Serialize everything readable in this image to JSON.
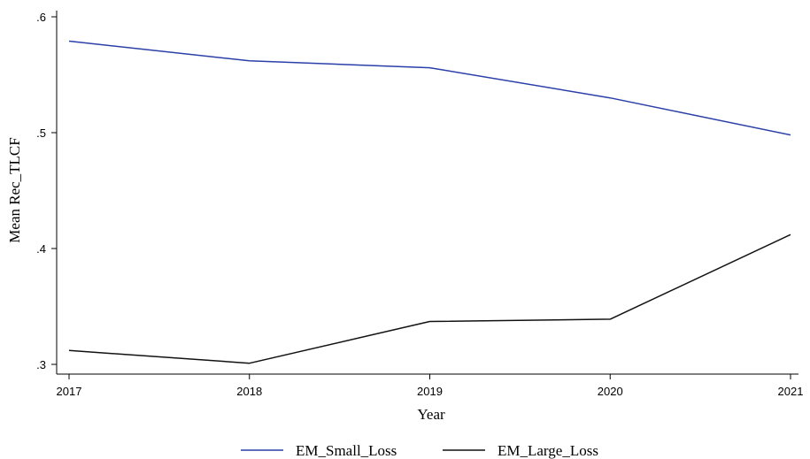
{
  "chart_data": {
    "type": "line",
    "x": [
      2017,
      2018,
      2019,
      2020,
      2021
    ],
    "x_tick_labels": [
      "2017",
      "2018",
      "2019",
      "2020",
      "2021"
    ],
    "xlim": [
      2017,
      2021
    ],
    "ylim": [
      0.3,
      0.6
    ],
    "y_ticks": [
      0.3,
      0.4,
      0.5,
      0.6
    ],
    "y_tick_labels": [
      ".3",
      ".4",
      ".5",
      ".6"
    ],
    "xlabel": "Year",
    "ylabel": "Mean Rec_TLCF",
    "grid": false,
    "legend_position": "bottom",
    "series": [
      {
        "name": "EM_Small_Loss",
        "color": "#2b3fa8",
        "values": [
          0.579,
          0.562,
          0.556,
          0.53,
          0.498
        ]
      },
      {
        "name": "EM_Large_Loss",
        "color": "#111111",
        "values": [
          0.312,
          0.301,
          0.337,
          0.339,
          0.412
        ]
      }
    ]
  }
}
